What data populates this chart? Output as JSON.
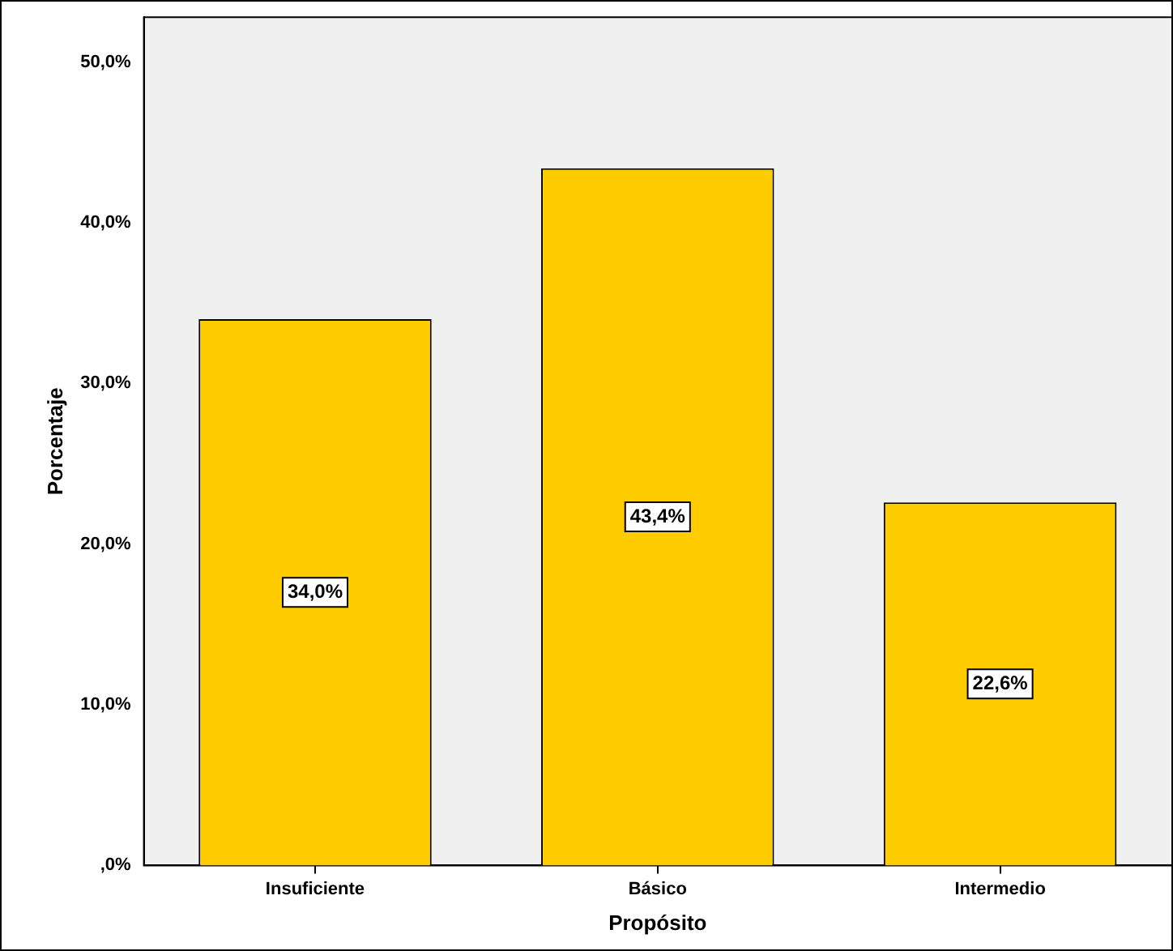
{
  "chart_data": {
    "type": "bar",
    "xlabel": "Propósito",
    "ylabel": "Porcentaje",
    "categories": [
      "Insuficiente",
      "Básico",
      "Intermedio"
    ],
    "values": [
      34.0,
      43.4,
      22.6
    ],
    "value_labels": [
      "34,0%",
      "43,4%",
      "22,6%"
    ],
    "color": "#ffcc00",
    "ylim": [
      0,
      52.8
    ],
    "yticks": [
      {
        "value": 0,
        "label": ",0%"
      },
      {
        "value": 10,
        "label": "10,0%"
      },
      {
        "value": 20,
        "label": "20,0%"
      },
      {
        "value": 30,
        "label": "30,0%"
      },
      {
        "value": 40,
        "label": "40,0%"
      },
      {
        "value": 50,
        "label": "50,0%"
      }
    ],
    "grid": false,
    "legend": false
  }
}
